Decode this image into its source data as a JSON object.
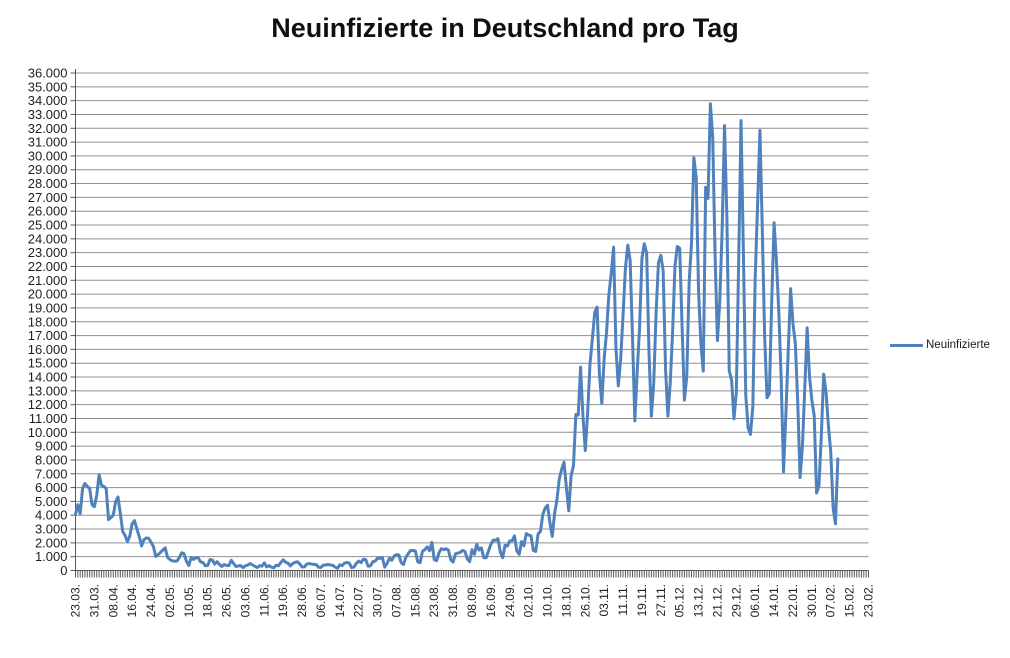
{
  "title": "Neuinfizierte in Deutschland pro Tag",
  "legend": {
    "label": "Neuinfizierte"
  },
  "colors": {
    "accent": "#4F81BD",
    "gridline": "#8f8f8f",
    "axis": "#595959",
    "label_text": "#1f1f1f"
  },
  "chart_data": {
    "type": "line",
    "title": "Neuinfizierte in Deutschland pro Tag",
    "xlabel": "",
    "ylabel": "",
    "ylim": [
      0,
      36000
    ],
    "y_tick_step": 1000,
    "grid": "horizontal",
    "legend_position": "right",
    "y_tick_labels": [
      "36.000",
      "35.000",
      "34.000",
      "33.000",
      "32.000",
      "31.000",
      "30.000",
      "29.000",
      "28.000",
      "27.000",
      "26.000",
      "25.000",
      "24.000",
      "23.000",
      "22.000",
      "21.000",
      "20.000",
      "19.000",
      "18.000",
      "17.000",
      "16.000",
      "15.000",
      "14.000",
      "13.000",
      "12.000",
      "11.000",
      "10.000",
      "9.000",
      "8.000",
      "7.000",
      "6.000",
      "5.000",
      "4.000",
      "3.000",
      "2.000",
      "1.000",
      "0"
    ],
    "x_tick_labels": [
      "23.03.",
      "31.03.",
      "08.04.",
      "16.04.",
      "24.04.",
      "02.05.",
      "10.05.",
      "18.05.",
      "26.05.",
      "03.06.",
      "11.06.",
      "19.06.",
      "28.06.",
      "06.07.",
      "14.07.",
      "22.07.",
      "30.07.",
      "07.08.",
      "15.08.",
      "23.08.",
      "31.08.",
      "08.09.",
      "16.09.",
      "24.09.",
      "02.10.",
      "10.10.",
      "18.10.",
      "26.10.",
      "03.11.",
      "11.11.",
      "19.11.",
      "27.11.",
      "05.12.",
      "13.12.",
      "21.12.",
      "29.12.",
      "06.01.",
      "14.01.",
      "22.01.",
      "30.01.",
      "07.02.",
      "15.02.",
      "23.02."
    ],
    "x_tick_interval": 8,
    "x_categories_total": 337,
    "series": [
      {
        "name": "Neuinfizierte",
        "color": "#4F81BD",
        "values": [
          4062,
          4764,
          4118,
          5940,
          6294,
          6082,
          5936,
          4751,
          4615,
          5453,
          6922,
          6174,
          6082,
          5936,
          3677,
          3834,
          4003,
          4974,
          5323,
          4133,
          2821,
          2537,
          2082,
          2486,
          3380,
          3609,
          3020,
          2458,
          1775,
          2237,
          2352,
          2337,
          2055,
          1737,
          1018,
          1144,
          1304,
          1478,
          1639,
          945,
          793,
          697,
          679,
          685,
          947,
          1284,
          1209,
          667,
          357,
          933,
          798,
          933,
          913,
          620,
          583,
          342,
          358,
          797,
          745,
          460,
          638,
          431,
          289,
          432,
          362,
          353,
          741,
          507,
          286,
          333,
          350,
          213,
          342,
          394,
          507,
          407,
          301,
          214,
          350,
          318,
          555,
          258,
          348,
          247,
          192,
          378,
          345,
          580,
          770,
          601,
          537,
          328,
          503,
          587,
          630,
          477,
          256,
          262,
          466,
          503,
          466,
          446,
          422,
          239,
          219,
          390,
          397,
          442,
          395,
          378,
          248,
          159,
          412,
          351,
          534,
          583,
          529,
          202,
          249,
          522,
          680,
          569,
          815,
          781,
          305,
          340,
          633,
          684,
          902,
          871,
          955,
          240,
          509,
          879,
          741,
          1045,
          1147,
          1122,
          555,
          436,
          966,
          1226,
          1445,
          1449,
          1415,
          625,
          561,
          1390,
          1510,
          1707,
          1427,
          2034,
          782,
          711,
          1278,
          1576,
          1507,
          1571,
          1479,
          785,
          610,
          1218,
          1256,
          1311,
          1453,
          1378,
          847,
          633,
          1499,
          1176,
          1892,
          1484,
          1630,
          920,
          927,
          1407,
          1901,
          2194,
          2179,
          2297,
          1345,
          922,
          1821,
          1769,
          2143,
          2153,
          2507,
          1411,
          1176,
          2089,
          1798,
          2673,
          2563,
          2519,
          1450,
          1382,
          2639,
          2828,
          4058,
          4516,
          4721,
          3483,
          2467,
          4122,
          5132,
          6638,
          7334,
          7830,
          5984,
          4325,
          6868,
          7595,
          11287,
          11242,
          14714,
          11176,
          8685,
          11409,
          14964,
          16774,
          18681,
          19059,
          14177,
          12097,
          15352,
          17214,
          19990,
          21506,
          23399,
          16017,
          13363,
          15332,
          18487,
          21866,
          23542,
          22461,
          16947,
          10824,
          14419,
          17561,
          22609,
          23648,
          22964,
          15741,
          11169,
          13554,
          18633,
          22268,
          22806,
          21695,
          14611,
          11169,
          13604,
          17270,
          22046,
          23449,
          23318,
          17767,
          12332,
          14054,
          20815,
          23679,
          29875,
          28438,
          20200,
          16362,
          14432,
          27728,
          26923,
          33777,
          31300,
          22771,
          16643,
          19528,
          24740,
          32195,
          25533,
          14455,
          13755,
          10976,
          12892,
          22459,
          32552,
          22924,
          12690,
          10315,
          9847,
          11897,
          21237,
          26391,
          31849,
          24694,
          16946,
          12497,
          12802,
          19600,
          25164,
          22368,
          18678,
          13882,
          7141,
          11369,
          15974,
          20398,
          17862,
          16417,
          12257,
          6729,
          8984,
          13202,
          17553,
          14022,
          12321,
          11192,
          5608,
          6114,
          9705,
          14211,
          12908,
          10485,
          8616,
          4535,
          3379,
          8072
        ]
      }
    ]
  }
}
